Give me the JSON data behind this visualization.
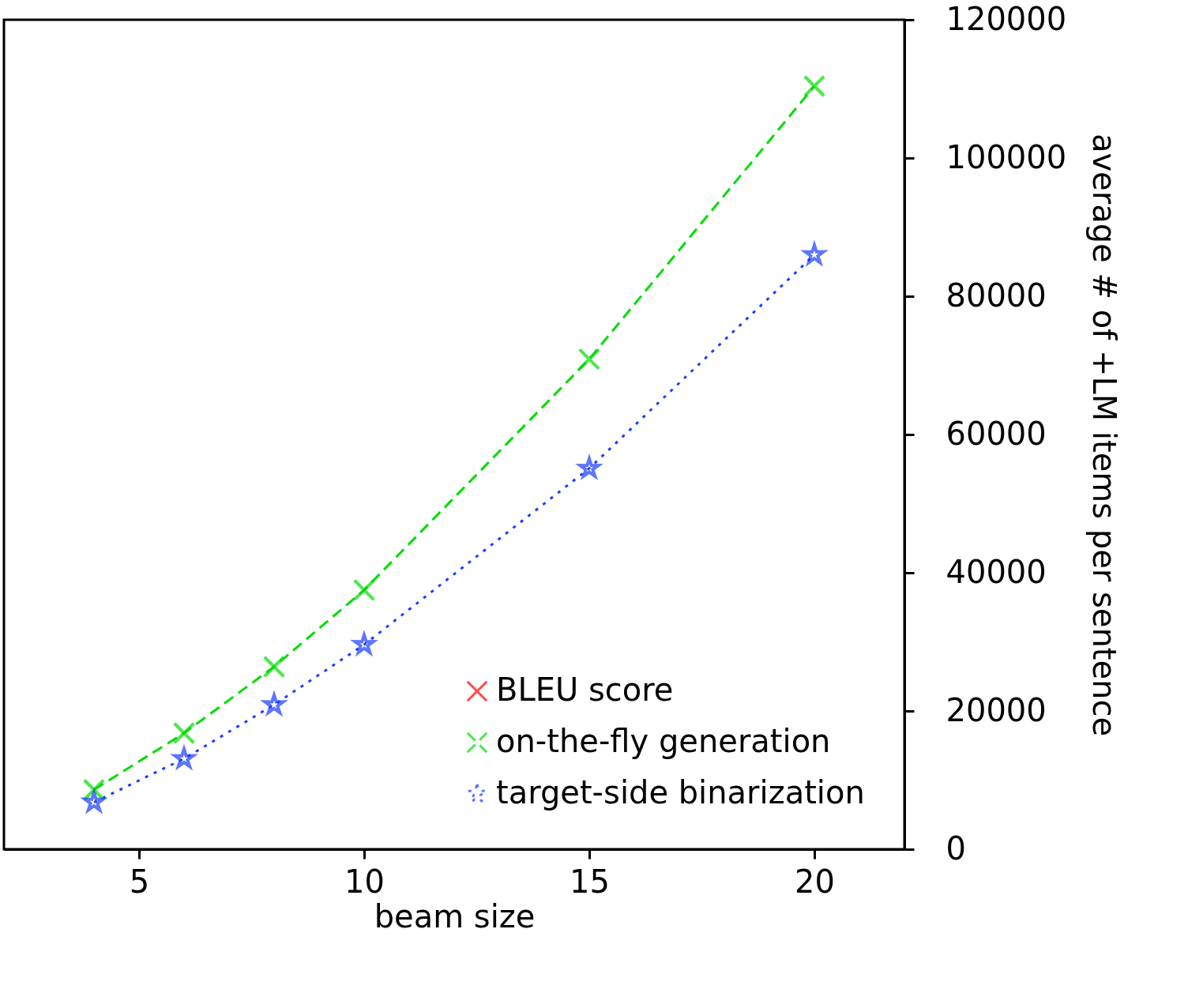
{
  "chart_data": {
    "type": "line",
    "xlabel": "beam size",
    "ylabel": "average # of +LM items per sentence",
    "x": [
      4,
      6,
      8,
      10,
      15,
      20
    ],
    "series": [
      {
        "name": "BLEU score",
        "color": "#ff0000",
        "values": [
          null,
          null,
          null,
          null,
          null,
          null
        ],
        "marker": "cross",
        "line_style": "solid"
      },
      {
        "name": "on-the-fly generation",
        "color": "#00dd00",
        "values": [
          8600,
          16800,
          26400,
          37500,
          70900,
          110400
        ],
        "marker": "cross",
        "line_style": "dashed"
      },
      {
        "name": "target-side binarization",
        "color": "#1a3cff",
        "values": [
          6800,
          13100,
          20900,
          29600,
          55100,
          86000
        ],
        "marker": "star",
        "line_style": "dotted"
      }
    ],
    "xlim": [
      2,
      22
    ],
    "xticks": [
      5,
      10,
      15,
      20
    ],
    "ylim": [
      0,
      120000
    ],
    "yticks": [
      0,
      20000,
      40000,
      60000,
      80000,
      100000,
      120000
    ],
    "grid": false,
    "legend": "bottom right"
  }
}
